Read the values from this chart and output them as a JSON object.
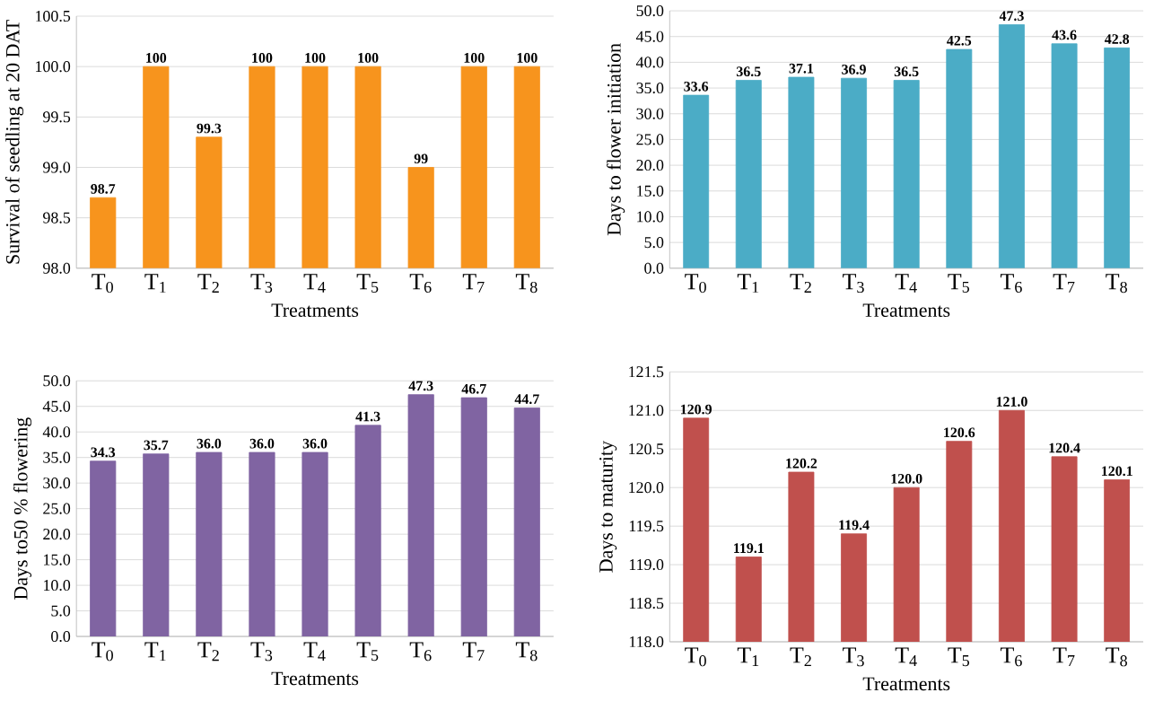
{
  "chart_data": [
    {
      "type": "bar",
      "categories": [
        "T$_{0}$",
        "T$_{1}$",
        "T$_{2}$",
        "T$_{3}$",
        "T$_{4}$",
        "T$_{5}$",
        "T$_{6}$",
        "T$_{7}$",
        "T$_{8}$"
      ],
      "values": [
        98.7,
        100,
        99.3,
        100,
        100,
        100,
        99,
        100,
        100
      ],
      "value_labels": [
        "98.7",
        "100",
        "99.3",
        "100",
        "100",
        "100",
        "99",
        "100",
        "100"
      ],
      "color": "#f7941d",
      "xlabel": "Treatments",
      "ylabel": "Survival of seedling at 20 DAT",
      "ylim": [
        98,
        100.5
      ],
      "yticks": [
        {
          "value": 98,
          "label": "98.0"
        },
        {
          "value": 98.5,
          "label": "98.5"
        },
        {
          "value": 99,
          "label": "99.0"
        },
        {
          "value": 99.5,
          "label": "99.5"
        },
        {
          "value": 100,
          "label": "100.0"
        },
        {
          "value": 100.5,
          "label": "100.5"
        }
      ],
      "grid": "y"
    },
    {
      "type": "bar",
      "categories": [
        "T$_{0}$",
        "T$_{1}$",
        "T$_{2}$",
        "T$_{3}$",
        "T$_{4}$",
        "T$_{5}$",
        "T$_{6}$",
        "T$_{7}$",
        "T$_{8}$"
      ],
      "values": [
        33.6,
        36.5,
        37.1,
        36.9,
        36.5,
        42.5,
        47.3,
        43.6,
        42.8
      ],
      "value_labels": [
        "33.6",
        "36.5",
        "37.1",
        "36.9",
        "36.5",
        "42.5",
        "47.3",
        "43.6",
        "42.8"
      ],
      "color": "#4bacc6",
      "xlabel": "Treatments",
      "ylabel": "Days to flower initiation",
      "ylim": [
        0,
        50
      ],
      "yticks": [
        {
          "value": 0,
          "label": "0.0"
        },
        {
          "value": 5,
          "label": "5.0"
        },
        {
          "value": 10,
          "label": "10.0"
        },
        {
          "value": 15,
          "label": "15.0"
        },
        {
          "value": 20,
          "label": "20.0"
        },
        {
          "value": 25,
          "label": "25.0"
        },
        {
          "value": 30,
          "label": "30.0"
        },
        {
          "value": 35,
          "label": "35.0"
        },
        {
          "value": 40,
          "label": "40.0"
        },
        {
          "value": 45,
          "label": "45.0"
        },
        {
          "value": 50,
          "label": "50.0"
        }
      ],
      "grid": "y"
    },
    {
      "type": "bar",
      "categories": [
        "T$_{0}$",
        "T$_{1}$",
        "T$_{2}$",
        "T$_{3}$",
        "T$_{4}$",
        "T$_{5}$",
        "T$_{6}$",
        "T$_{7}$",
        "T$_{8}$"
      ],
      "values": [
        34.3,
        35.7,
        36.0,
        36.0,
        36.0,
        41.3,
        47.3,
        46.7,
        44.7
      ],
      "value_labels": [
        "34.3",
        "35.7",
        "36.0",
        "36.0",
        "36.0",
        "41.3",
        "47.3",
        "46.7",
        "44.7"
      ],
      "color": "#8064a2",
      "xlabel": "Treatments",
      "ylabel": "Days to50 % flowering",
      "ylim": [
        0,
        50
      ],
      "yticks": [
        {
          "value": 0,
          "label": "0.0"
        },
        {
          "value": 5,
          "label": "5.0"
        },
        {
          "value": 10,
          "label": "10.0"
        },
        {
          "value": 15,
          "label": "15.0"
        },
        {
          "value": 20,
          "label": "20.0"
        },
        {
          "value": 25,
          "label": "25.0"
        },
        {
          "value": 30,
          "label": "30.0"
        },
        {
          "value": 35,
          "label": "35.0"
        },
        {
          "value": 40,
          "label": "40.0"
        },
        {
          "value": 45,
          "label": "45.0"
        },
        {
          "value": 50,
          "label": "50.0"
        }
      ],
      "grid": "y"
    },
    {
      "type": "bar",
      "categories": [
        "T$_{0}$",
        "T$_{1}$",
        "T$_{2}$",
        "T$_{3}$",
        "T$_{4}$",
        "T$_{5}$",
        "T$_{6}$",
        "T$_{7}$",
        "T$_{8}$"
      ],
      "values": [
        120.9,
        119.1,
        120.2,
        119.4,
        120.0,
        120.6,
        121.0,
        120.4,
        120.1
      ],
      "value_labels": [
        "120.9",
        "119.1",
        "120.2",
        "119.4",
        "120.0",
        "120.6",
        "121.0",
        "120.4",
        "120.1"
      ],
      "color": "#c0504d",
      "xlabel": "Treatments",
      "ylabel": "Days to maturity",
      "ylim": [
        118,
        121.5
      ],
      "yticks": [
        {
          "value": 118,
          "label": "118.0"
        },
        {
          "value": 118.5,
          "label": "118.5"
        },
        {
          "value": 119,
          "label": "119.0"
        },
        {
          "value": 119.5,
          "label": "119.5"
        },
        {
          "value": 120,
          "label": "120.0"
        },
        {
          "value": 120.5,
          "label": "120.5"
        },
        {
          "value": 121,
          "label": "121.0"
        },
        {
          "value": 121.5,
          "label": "121.5"
        }
      ],
      "grid": "y"
    }
  ]
}
